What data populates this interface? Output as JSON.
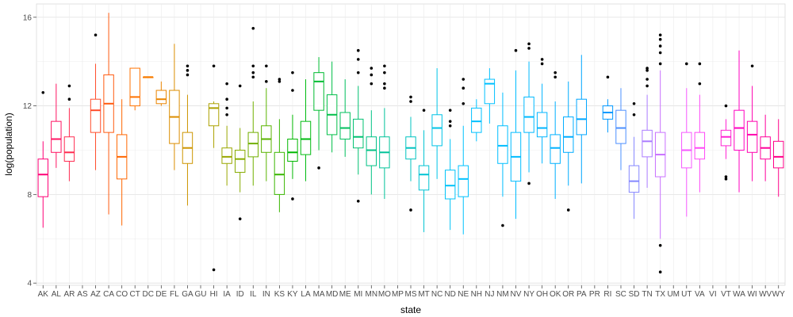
{
  "chart_data": {
    "type": "box",
    "xlabel": "state",
    "ylabel": "log(population)",
    "ylim": [
      3.9,
      16.6
    ],
    "yticks": [
      4,
      8,
      12,
      16
    ],
    "grid": true,
    "legend": "none",
    "categories": [
      "AK",
      "AL",
      "AR",
      "AS",
      "AZ",
      "CA",
      "CO",
      "CT",
      "DC",
      "DE",
      "FL",
      "GA",
      "GU",
      "HI",
      "IA",
      "ID",
      "IL",
      "IN",
      "KS",
      "KY",
      "LA",
      "MA",
      "MD",
      "ME",
      "MI",
      "MN",
      "MO",
      "MP",
      "MS",
      "MT",
      "NC",
      "ND",
      "NE",
      "NH",
      "NJ",
      "NM",
      "NV",
      "NY",
      "OH",
      "OK",
      "OR",
      "PA",
      "PR",
      "RI",
      "SC",
      "SD",
      "TN",
      "TX",
      "UM",
      "UT",
      "VA",
      "VI",
      "VT",
      "WA",
      "WI",
      "WV",
      "WY"
    ],
    "boxes": [
      {
        "state": "AK",
        "q1": 7.9,
        "median": 8.9,
        "q3": 9.6,
        "low": 6.5,
        "high": 10.4,
        "outliers": [
          12.6
        ]
      },
      {
        "state": "AL",
        "q1": 9.9,
        "median": 10.5,
        "q3": 11.3,
        "low": 9.2,
        "high": 13.0,
        "outliers": []
      },
      {
        "state": "AR",
        "q1": 9.5,
        "median": 9.9,
        "q3": 10.6,
        "low": 8.6,
        "high": 11.9,
        "outliers": [
          12.3,
          12.9
        ]
      },
      {
        "state": "AS",
        "q1": null,
        "median": null,
        "q3": null,
        "low": null,
        "high": null,
        "outliers": []
      },
      {
        "state": "AZ",
        "q1": 10.8,
        "median": 11.8,
        "q3": 12.3,
        "low": 9.1,
        "high": 13.9,
        "outliers": [
          15.2
        ]
      },
      {
        "state": "CA",
        "q1": 10.8,
        "median": 12.1,
        "q3": 13.4,
        "low": 7.1,
        "high": 16.2,
        "outliers": []
      },
      {
        "state": "CO",
        "q1": 8.7,
        "median": 9.7,
        "q3": 10.7,
        "low": 6.6,
        "high": 12.3,
        "outliers": []
      },
      {
        "state": "CT",
        "q1": 12.0,
        "median": 12.4,
        "q3": 13.7,
        "low": 11.8,
        "high": 13.7,
        "outliers": []
      },
      {
        "state": "DC",
        "q1": 13.3,
        "median": 13.3,
        "q3": 13.3,
        "low": 13.3,
        "high": 13.3,
        "outliers": []
      },
      {
        "state": "DE",
        "q1": 12.1,
        "median": 12.3,
        "q3": 12.7,
        "low": 12.0,
        "high": 13.1,
        "outliers": []
      },
      {
        "state": "FL",
        "q1": 10.3,
        "median": 11.5,
        "q3": 12.7,
        "low": 9.1,
        "high": 14.8,
        "outliers": []
      },
      {
        "state": "GA",
        "q1": 9.4,
        "median": 10.1,
        "q3": 10.8,
        "low": 7.5,
        "high": 12.5,
        "outliers": [
          13.4,
          13.6,
          13.8
        ]
      },
      {
        "state": "GU",
        "q1": null,
        "median": null,
        "q3": null,
        "low": null,
        "high": null,
        "outliers": []
      },
      {
        "state": "HI",
        "q1": 11.1,
        "median": 11.9,
        "q3": 12.1,
        "low": 10.1,
        "high": 12.2,
        "outliers": [
          13.8,
          4.6
        ]
      },
      {
        "state": "IA",
        "q1": 9.4,
        "median": 9.7,
        "q3": 10.1,
        "low": 8.4,
        "high": 11.1,
        "outliers": [
          11.6,
          11.9,
          12.3,
          13.0
        ]
      },
      {
        "state": "ID",
        "q1": 9.0,
        "median": 9.6,
        "q3": 10.0,
        "low": 8.1,
        "high": 11.0,
        "outliers": [
          6.9,
          12.9
        ]
      },
      {
        "state": "IL",
        "q1": 9.7,
        "median": 10.3,
        "q3": 10.8,
        "low": 8.4,
        "high": 12.2,
        "outliers": [
          13.3,
          13.5,
          13.8,
          15.5
        ]
      },
      {
        "state": "IN",
        "q1": 9.9,
        "median": 10.5,
        "q3": 11.1,
        "low": 8.6,
        "high": 12.8,
        "outliers": [
          13.1,
          13.8
        ]
      },
      {
        "state": "KS",
        "q1": 8.0,
        "median": 8.9,
        "q3": 9.9,
        "low": 7.2,
        "high": 11.4,
        "outliers": [
          13.1,
          13.2
        ]
      },
      {
        "state": "KY",
        "q1": 9.5,
        "median": 9.9,
        "q3": 10.5,
        "low": 8.7,
        "high": 11.6,
        "outliers": [
          7.8,
          12.7,
          13.5
        ]
      },
      {
        "state": "LA",
        "q1": 9.8,
        "median": 10.5,
        "q3": 11.3,
        "low": 8.6,
        "high": 13.2,
        "outliers": []
      },
      {
        "state": "MA",
        "q1": 11.8,
        "median": 13.1,
        "q3": 13.5,
        "low": 10.0,
        "high": 14.2,
        "outliers": [
          9.2
        ]
      },
      {
        "state": "MD",
        "q1": 10.7,
        "median": 11.6,
        "q3": 12.5,
        "low": 9.9,
        "high": 14.0,
        "outliers": []
      },
      {
        "state": "ME",
        "q1": 10.5,
        "median": 11.0,
        "q3": 11.7,
        "low": 9.7,
        "high": 13.2,
        "outliers": []
      },
      {
        "state": "MI",
        "q1": 10.1,
        "median": 10.6,
        "q3": 11.4,
        "low": 8.9,
        "high": 12.9,
        "outliers": [
          7.7,
          13.5,
          14.1,
          14.5
        ]
      },
      {
        "state": "MN",
        "q1": 9.3,
        "median": 10.0,
        "q3": 10.6,
        "low": 8.0,
        "high": 11.8,
        "outliers": [
          13.0,
          13.4,
          13.7
        ]
      },
      {
        "state": "MO",
        "q1": 9.2,
        "median": 9.9,
        "q3": 10.6,
        "low": 7.8,
        "high": 11.9,
        "outliers": [
          12.8,
          13.0,
          13.5,
          13.8
        ]
      },
      {
        "state": "MP",
        "q1": null,
        "median": null,
        "q3": null,
        "low": null,
        "high": null,
        "outliers": []
      },
      {
        "state": "MS",
        "q1": 9.6,
        "median": 10.1,
        "q3": 10.6,
        "low": 8.6,
        "high": 11.5,
        "outliers": [
          7.3,
          12.2,
          12.4
        ]
      },
      {
        "state": "MT",
        "q1": 8.2,
        "median": 8.9,
        "q3": 9.3,
        "low": 6.3,
        "high": 10.9,
        "outliers": [
          11.8
        ]
      },
      {
        "state": "NC",
        "q1": 10.2,
        "median": 11.0,
        "q3": 11.6,
        "low": 8.7,
        "high": 13.7,
        "outliers": []
      },
      {
        "state": "ND",
        "q1": 7.8,
        "median": 8.4,
        "q3": 9.1,
        "low": 6.4,
        "high": 10.5,
        "outliers": [
          11.1,
          11.3,
          11.8
        ]
      },
      {
        "state": "NE",
        "q1": 7.9,
        "median": 8.7,
        "q3": 9.3,
        "low": 6.2,
        "high": 11.1,
        "outliers": [
          12.1,
          12.8,
          13.2
        ]
      },
      {
        "state": "NH",
        "q1": 10.8,
        "median": 11.3,
        "q3": 11.9,
        "low": 10.4,
        "high": 12.3,
        "outliers": []
      },
      {
        "state": "NJ",
        "q1": 12.1,
        "median": 13.0,
        "q3": 13.2,
        "low": 11.2,
        "high": 13.7,
        "outliers": []
      },
      {
        "state": "NM",
        "q1": 9.4,
        "median": 10.2,
        "q3": 11.1,
        "low": 7.9,
        "high": 12.6,
        "outliers": [
          6.6
        ]
      },
      {
        "state": "NV",
        "q1": 8.6,
        "median": 9.7,
        "q3": 10.8,
        "low": 6.9,
        "high": 13.6,
        "outliers": [
          14.5
        ]
      },
      {
        "state": "NY",
        "q1": 10.8,
        "median": 11.5,
        "q3": 12.4,
        "low": 9.0,
        "high": 14.0,
        "outliers": [
          8.5,
          14.6,
          14.8
        ]
      },
      {
        "state": "OH",
        "q1": 10.6,
        "median": 11.0,
        "q3": 11.7,
        "low": 9.4,
        "high": 13.0,
        "outliers": [
          13.9,
          14.1
        ]
      },
      {
        "state": "OK",
        "q1": 9.4,
        "median": 10.1,
        "q3": 10.7,
        "low": 7.8,
        "high": 12.2,
        "outliers": [
          13.3,
          13.5
        ]
      },
      {
        "state": "OR",
        "q1": 9.9,
        "median": 10.6,
        "q3": 11.5,
        "low": 8.4,
        "high": 13.1,
        "outliers": [
          7.3
        ]
      },
      {
        "state": "PA",
        "q1": 10.7,
        "median": 11.4,
        "q3": 12.3,
        "low": 8.5,
        "high": 14.3,
        "outliers": []
      },
      {
        "state": "PR",
        "q1": null,
        "median": null,
        "q3": null,
        "low": null,
        "high": null,
        "outliers": []
      },
      {
        "state": "RI",
        "q1": 11.4,
        "median": 11.7,
        "q3": 12.0,
        "low": 10.8,
        "high": 12.3,
        "outliers": [
          13.3
        ]
      },
      {
        "state": "SC",
        "q1": 10.3,
        "median": 11.0,
        "q3": 11.8,
        "low": 9.1,
        "high": 12.8,
        "outliers": []
      },
      {
        "state": "SD",
        "q1": 8.1,
        "median": 8.6,
        "q3": 9.3,
        "low": 6.9,
        "high": 10.6,
        "outliers": [
          11.6,
          12.1
        ]
      },
      {
        "state": "TN",
        "q1": 9.7,
        "median": 10.4,
        "q3": 10.9,
        "low": 8.3,
        "high": 12.5,
        "outliers": [
          12.9,
          13.2,
          13.6,
          13.7
        ]
      },
      {
        "state": "TX",
        "q1": 8.8,
        "median": 9.8,
        "q3": 10.8,
        "low": 6.0,
        "high": 13.6,
        "outliers": [
          4.5,
          5.7,
          13.9,
          14.4,
          14.7,
          15.0,
          15.2
        ]
      },
      {
        "state": "UM",
        "q1": null,
        "median": null,
        "q3": null,
        "low": null,
        "high": null,
        "outliers": []
      },
      {
        "state": "UT",
        "q1": 9.2,
        "median": 10.0,
        "q3": 10.8,
        "low": 7.0,
        "high": 12.8,
        "outliers": [
          13.9
        ]
      },
      {
        "state": "VA",
        "q1": 9.6,
        "median": 10.1,
        "q3": 10.8,
        "low": 8.1,
        "high": 12.5,
        "outliers": [
          13.0,
          13.9
        ]
      },
      {
        "state": "VI",
        "q1": null,
        "median": null,
        "q3": null,
        "low": null,
        "high": null,
        "outliers": []
      },
      {
        "state": "VT",
        "q1": 10.2,
        "median": 10.6,
        "q3": 10.9,
        "low": 9.6,
        "high": 11.4,
        "outliers": [
          8.7,
          8.8,
          12.0
        ]
      },
      {
        "state": "WA",
        "q1": 10.0,
        "median": 11.0,
        "q3": 11.8,
        "low": 8.1,
        "high": 14.5,
        "outliers": []
      },
      {
        "state": "WI",
        "q1": 9.9,
        "median": 10.7,
        "q3": 11.3,
        "low": 8.6,
        "high": 12.9,
        "outliers": [
          13.8
        ]
      },
      {
        "state": "WV",
        "q1": 9.6,
        "median": 10.1,
        "q3": 10.6,
        "low": 8.6,
        "high": 11.6,
        "outliers": []
      },
      {
        "state": "WY",
        "q1": 9.2,
        "median": 9.7,
        "q3": 10.4,
        "low": 7.9,
        "high": 11.4,
        "outliers": []
      }
    ]
  }
}
